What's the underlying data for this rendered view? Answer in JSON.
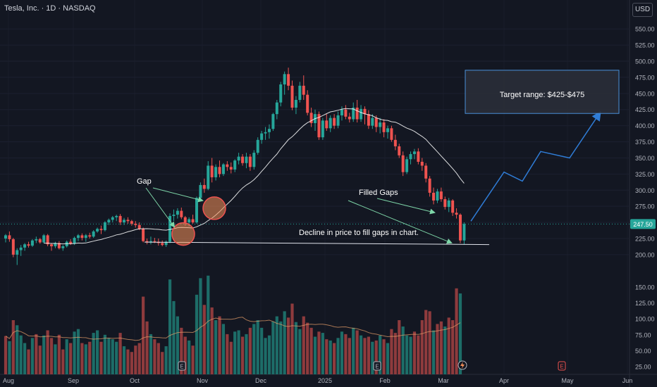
{
  "header": {
    "title": "Tesla, Inc. · 1D · NASDAQ",
    "currency": "USD"
  },
  "chart_data": {
    "type": "candlestick",
    "title": "Tesla, Inc. · 1D · NASDAQ",
    "price_axis": {
      "ticks": [
        "550.00",
        "525.00",
        "500.00",
        "475.00",
        "450.00",
        "425.00",
        "400.00",
        "375.00",
        "350.00",
        "325.00",
        "300.00",
        "275.00",
        "250.00",
        "225.00",
        "200.00"
      ],
      "range": [
        185,
        565
      ]
    },
    "volume_axis": {
      "ticks": [
        "150.00",
        "125.00",
        "100.00",
        "75.00",
        "50.00",
        "25.00"
      ],
      "range": [
        12,
        165
      ]
    },
    "x_ticks": [
      "Aug",
      "Sep",
      "Oct",
      "Nov",
      "Dec",
      "2025",
      "Feb",
      "Mar",
      "Apr",
      "May",
      "Jun"
    ],
    "last_price": "247.50",
    "moving_average": "MA (20)",
    "candles": [
      [
        225,
        232,
        219,
        230
      ],
      [
        230,
        236,
        220,
        224
      ],
      [
        224,
        226,
        196,
        200
      ],
      [
        200,
        210,
        184,
        207
      ],
      [
        207,
        215,
        198,
        211
      ],
      [
        211,
        218,
        206,
        216
      ],
      [
        216,
        220,
        211,
        214
      ],
      [
        214,
        224,
        212,
        222
      ],
      [
        222,
        228,
        218,
        224
      ],
      [
        224,
        226,
        217,
        219
      ],
      [
        219,
        232,
        218,
        230
      ],
      [
        230,
        232,
        213,
        216
      ],
      [
        216,
        218,
        206,
        213
      ],
      [
        213,
        220,
        210,
        218
      ],
      [
        218,
        221,
        208,
        210
      ],
      [
        210,
        215,
        206,
        213
      ],
      [
        213,
        222,
        211,
        220
      ],
      [
        220,
        224,
        215,
        217
      ],
      [
        217,
        228,
        215,
        226
      ],
      [
        226,
        232,
        221,
        230
      ],
      [
        230,
        233,
        222,
        226
      ],
      [
        226,
        232,
        220,
        230
      ],
      [
        230,
        234,
        225,
        228
      ],
      [
        228,
        238,
        226,
        236
      ],
      [
        236,
        242,
        234,
        240
      ],
      [
        240,
        245,
        232,
        238
      ],
      [
        238,
        252,
        236,
        250
      ],
      [
        250,
        256,
        246,
        254
      ],
      [
        254,
        260,
        250,
        258
      ],
      [
        258,
        262,
        252,
        260
      ],
      [
        260,
        263,
        246,
        250
      ],
      [
        250,
        257,
        246,
        254
      ],
      [
        254,
        258,
        248,
        252
      ],
      [
        252,
        254,
        245,
        248
      ],
      [
        248,
        252,
        242,
        246
      ],
      [
        246,
        250,
        238,
        240
      ],
      [
        240,
        242,
        219,
        221
      ],
      [
        221,
        225,
        216,
        219
      ],
      [
        219,
        228,
        216,
        221
      ],
      [
        221,
        226,
        218,
        220
      ],
      [
        220,
        225,
        214,
        218
      ],
      [
        218,
        222,
        213,
        215
      ],
      [
        215,
        222,
        212,
        220
      ],
      [
        220,
        264,
        218,
        260
      ],
      [
        260,
        270,
        252,
        262
      ],
      [
        262,
        272,
        256,
        268
      ],
      [
        268,
        273,
        255,
        258
      ],
      [
        258,
        260,
        245,
        250
      ],
      [
        250,
        258,
        244,
        255
      ],
      [
        255,
        262,
        248,
        250
      ],
      [
        250,
        290,
        248,
        288
      ],
      [
        288,
        312,
        284,
        308
      ],
      [
        308,
        318,
        296,
        302
      ],
      [
        302,
        345,
        300,
        338
      ],
      [
        338,
        350,
        312,
        320
      ],
      [
        320,
        340,
        315,
        336
      ],
      [
        336,
        346,
        320,
        325
      ],
      [
        325,
        342,
        322,
        340
      ],
      [
        340,
        345,
        330,
        336
      ],
      [
        336,
        343,
        326,
        332
      ],
      [
        332,
        348,
        328,
        346
      ],
      [
        346,
        358,
        340,
        352
      ],
      [
        352,
        356,
        338,
        342
      ],
      [
        342,
        358,
        334,
        352
      ],
      [
        352,
        356,
        330,
        336
      ],
      [
        336,
        362,
        332,
        358
      ],
      [
        358,
        382,
        355,
        378
      ],
      [
        378,
        392,
        372,
        388
      ],
      [
        388,
        398,
        378,
        390
      ],
      [
        390,
        402,
        380,
        395
      ],
      [
        395,
        420,
        392,
        418
      ],
      [
        418,
        440,
        410,
        436
      ],
      [
        436,
        468,
        430,
        464
      ],
      [
        464,
        484,
        448,
        480
      ],
      [
        480,
        490,
        455,
        462
      ],
      [
        462,
        470,
        424,
        428
      ],
      [
        428,
        446,
        418,
        440
      ],
      [
        440,
        468,
        436,
        462
      ],
      [
        462,
        478,
        440,
        448
      ],
      [
        448,
        455,
        416,
        420
      ],
      [
        420,
        428,
        398,
        404
      ],
      [
        404,
        425,
        392,
        418
      ],
      [
        418,
        422,
        378,
        382
      ],
      [
        382,
        412,
        378,
        408
      ],
      [
        408,
        418,
        392,
        396
      ],
      [
        396,
        416,
        390,
        412
      ],
      [
        412,
        418,
        395,
        400
      ],
      [
        400,
        422,
        396,
        416
      ],
      [
        416,
        430,
        408,
        425
      ],
      [
        425,
        432,
        410,
        414
      ],
      [
        414,
        420,
        405,
        410
      ],
      [
        410,
        436,
        406,
        428
      ],
      [
        428,
        440,
        405,
        410
      ],
      [
        410,
        432,
        406,
        426
      ],
      [
        426,
        430,
        402,
        418
      ],
      [
        418,
        424,
        395,
        400
      ],
      [
        400,
        418,
        395,
        412
      ],
      [
        412,
        416,
        390,
        398
      ],
      [
        398,
        412,
        388,
        405
      ],
      [
        405,
        410,
        382,
        390
      ],
      [
        390,
        400,
        380,
        396
      ],
      [
        396,
        400,
        375,
        378
      ],
      [
        378,
        386,
        362,
        368
      ],
      [
        368,
        372,
        350,
        354
      ],
      [
        354,
        360,
        322,
        328
      ],
      [
        328,
        352,
        325,
        348
      ],
      [
        348,
        360,
        340,
        356
      ],
      [
        356,
        364,
        348,
        360
      ],
      [
        360,
        365,
        340,
        344
      ],
      [
        344,
        350,
        330,
        338
      ],
      [
        338,
        342,
        312,
        318
      ],
      [
        318,
        322,
        290,
        296
      ],
      [
        296,
        304,
        278,
        284
      ],
      [
        284,
        302,
        280,
        298
      ],
      [
        298,
        304,
        282,
        286
      ],
      [
        286,
        290,
        270,
        274
      ],
      [
        274,
        288,
        266,
        284
      ],
      [
        284,
        286,
        260,
        265
      ],
      [
        265,
        272,
        256,
        262
      ],
      [
        262,
        264,
        218,
        222
      ],
      [
        222,
        250,
        216,
        247.5
      ]
    ],
    "volume_bars": [
      [
        73,
        "red"
      ],
      [
        65,
        "green"
      ],
      [
        98,
        "red"
      ],
      [
        90,
        "green"
      ],
      [
        74,
        "green"
      ],
      [
        62,
        "green"
      ],
      [
        52,
        "red"
      ],
      [
        70,
        "green"
      ],
      [
        76,
        "red"
      ],
      [
        58,
        "red"
      ],
      [
        74,
        "green"
      ],
      [
        82,
        "red"
      ],
      [
        70,
        "red"
      ],
      [
        60,
        "green"
      ],
      [
        75,
        "red"
      ],
      [
        52,
        "red"
      ],
      [
        68,
        "green"
      ],
      [
        62,
        "red"
      ],
      [
        80,
        "green"
      ],
      [
        84,
        "green"
      ],
      [
        62,
        "red"
      ],
      [
        60,
        "green"
      ],
      [
        64,
        "red"
      ],
      [
        78,
        "green"
      ],
      [
        82,
        "green"
      ],
      [
        64,
        "red"
      ],
      [
        75,
        "green"
      ],
      [
        70,
        "green"
      ],
      [
        68,
        "green"
      ],
      [
        64,
        "green"
      ],
      [
        78,
        "red"
      ],
      [
        57,
        "green"
      ],
      [
        52,
        "red"
      ],
      [
        48,
        "red"
      ],
      [
        58,
        "red"
      ],
      [
        62,
        "red"
      ],
      [
        135,
        "red"
      ],
      [
        96,
        "red"
      ],
      [
        76,
        "green"
      ],
      [
        68,
        "red"
      ],
      [
        62,
        "red"
      ],
      [
        48,
        "red"
      ],
      [
        57,
        "green"
      ],
      [
        162,
        "green"
      ],
      [
        128,
        "green"
      ],
      [
        104,
        "green"
      ],
      [
        86,
        "red"
      ],
      [
        72,
        "red"
      ],
      [
        66,
        "green"
      ],
      [
        58,
        "red"
      ],
      [
        138,
        "green"
      ],
      [
        164,
        "green"
      ],
      [
        122,
        "red"
      ],
      [
        168,
        "green"
      ],
      [
        118,
        "red"
      ],
      [
        98,
        "green"
      ],
      [
        104,
        "red"
      ],
      [
        92,
        "green"
      ],
      [
        76,
        "red"
      ],
      [
        64,
        "red"
      ],
      [
        80,
        "green"
      ],
      [
        82,
        "green"
      ],
      [
        72,
        "red"
      ],
      [
        76,
        "green"
      ],
      [
        86,
        "red"
      ],
      [
        92,
        "green"
      ],
      [
        98,
        "green"
      ],
      [
        86,
        "green"
      ],
      [
        70,
        "green"
      ],
      [
        74,
        "green"
      ],
      [
        96,
        "green"
      ],
      [
        104,
        "green"
      ],
      [
        96,
        "green"
      ],
      [
        112,
        "green"
      ],
      [
        102,
        "red"
      ],
      [
        124,
        "red"
      ],
      [
        95,
        "green"
      ],
      [
        84,
        "green"
      ],
      [
        104,
        "red"
      ],
      [
        94,
        "red"
      ],
      [
        86,
        "red"
      ],
      [
        72,
        "green"
      ],
      [
        80,
        "red"
      ],
      [
        78,
        "green"
      ],
      [
        68,
        "red"
      ],
      [
        66,
        "green"
      ],
      [
        62,
        "red"
      ],
      [
        70,
        "green"
      ],
      [
        80,
        "green"
      ],
      [
        76,
        "red"
      ],
      [
        70,
        "red"
      ],
      [
        86,
        "green"
      ],
      [
        82,
        "red"
      ],
      [
        74,
        "green"
      ],
      [
        70,
        "red"
      ],
      [
        72,
        "red"
      ],
      [
        64,
        "green"
      ],
      [
        66,
        "red"
      ],
      [
        74,
        "green"
      ],
      [
        68,
        "red"
      ],
      [
        62,
        "green"
      ],
      [
        84,
        "red"
      ],
      [
        78,
        "red"
      ],
      [
        98,
        "red"
      ],
      [
        88,
        "green"
      ],
      [
        74,
        "green"
      ],
      [
        72,
        "green"
      ],
      [
        80,
        "red"
      ],
      [
        74,
        "red"
      ],
      [
        98,
        "red"
      ],
      [
        114,
        "red"
      ],
      [
        112,
        "red"
      ],
      [
        82,
        "green"
      ],
      [
        92,
        "red"
      ],
      [
        96,
        "red"
      ],
      [
        88,
        "green"
      ],
      [
        102,
        "red"
      ],
      [
        98,
        "red"
      ],
      [
        148,
        "red"
      ],
      [
        140,
        "green"
      ]
    ],
    "gap_circles": [
      {
        "price": 232
      },
      {
        "price": 272
      }
    ],
    "support_line_price": 220,
    "projection": {
      "prices": [
        252,
        328,
        314,
        360,
        350,
        420
      ]
    },
    "target_box": {
      "price_top": 486,
      "price_bottom": 419
    },
    "annotations": {
      "gap": "Gap",
      "filled_gaps": "Filled Gaps",
      "decline": "Decline in price to fill gaps in chart.",
      "target": "Target range: $425-$475"
    },
    "event_markers": [
      "E",
      "E",
      "E"
    ],
    "colors": {
      "up": "#26a69a",
      "down": "#ef5350",
      "vol_up": "#1d6d68",
      "vol_down": "#8e3b3d",
      "ma": "#ffffff",
      "projection": "#2f7cd6",
      "circle_fill": "#f7925a",
      "circle_stroke": "#ef5350",
      "annotation_arrow": "#7ed6a8",
      "last_price_badge": "#26a69a"
    }
  }
}
